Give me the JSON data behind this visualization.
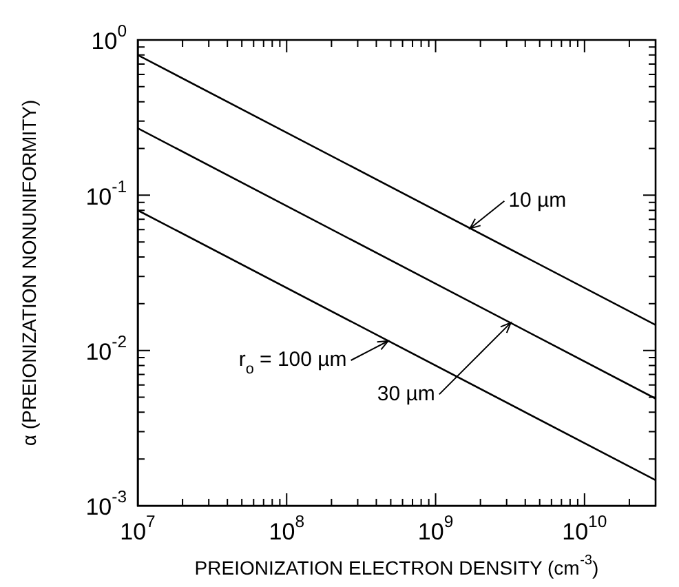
{
  "chart_data": {
    "type": "line",
    "xlabel": "PREIONIZATION ELECTRON DENSITY (cm$^{-3}$)",
    "ylabel": "α (PREIONIZATION NONUNIFORMITY)",
    "x": [
      10000000,
      30000000000
    ],
    "series": [
      {
        "color": "#000000",
        "values": [
          0.8,
          0.0146
        ]
      },
      {
        "color": "#000000",
        "values": [
          0.27,
          0.0049
        ]
      },
      {
        "color": "#000000",
        "values": [
          0.08,
          0.00146
        ]
      }
    ],
    "log": "xy",
    "grid": false,
    "legend": false,
    "marker": "none",
    "line_style": "solid",
    "xlim": [
      10000000,
      30000000000
    ],
    "xticks": [
      {
        "value": 10000000,
        "label": "10$^{7}$"
      },
      {
        "value": 20000000,
        "label": null
      },
      {
        "value": 30000000,
        "label": null
      },
      {
        "value": 40000000,
        "label": null
      },
      {
        "value": 50000000,
        "label": null
      },
      {
        "value": 60000000,
        "label": null
      },
      {
        "value": 70000000,
        "label": null
      },
      {
        "value": 80000000,
        "label": null
      },
      {
        "value": 90000000,
        "label": null
      },
      {
        "value": 100000000,
        "label": "10$^{8}$"
      },
      {
        "value": 200000000,
        "label": null
      },
      {
        "value": 300000000,
        "label": null
      },
      {
        "value": 400000000,
        "label": null
      },
      {
        "value": 500000000,
        "label": null
      },
      {
        "value": 600000000,
        "label": null
      },
      {
        "value": 700000000,
        "label": null
      },
      {
        "value": 800000000,
        "label": null
      },
      {
        "value": 900000000,
        "label": null
      },
      {
        "value": 1000000000,
        "label": "10$^{9}$"
      },
      {
        "value": 2000000000,
        "label": null
      },
      {
        "value": 3000000000,
        "label": null
      },
      {
        "value": 4000000000,
        "label": null
      },
      {
        "value": 5000000000,
        "label": null
      },
      {
        "value": 6000000000,
        "label": null
      },
      {
        "value": 7000000000,
        "label": null
      },
      {
        "value": 8000000000,
        "label": null
      },
      {
        "value": 9000000000,
        "label": null
      },
      {
        "value": 10000000000,
        "label": "10$^{10}$"
      },
      {
        "value": 20000000000,
        "label": null
      }
    ],
    "ylim": [
      0.001,
      1
    ],
    "yticks": [
      {
        "value": 0.001,
        "label": "10$^{-3}$"
      },
      {
        "value": 0.002,
        "label": null
      },
      {
        "value": 0.003,
        "label": null
      },
      {
        "value": 0.004,
        "label": null
      },
      {
        "value": 0.005,
        "label": null
      },
      {
        "value": 0.006,
        "label": null
      },
      {
        "value": 0.007,
        "label": null
      },
      {
        "value": 0.008,
        "label": null
      },
      {
        "value": 0.009,
        "label": null
      },
      {
        "value": 0.01,
        "label": "10$^{-2}$"
      },
      {
        "value": 0.02,
        "label": null
      },
      {
        "value": 0.03,
        "label": null
      },
      {
        "value": 0.04,
        "label": null
      },
      {
        "value": 0.05,
        "label": null
      },
      {
        "value": 0.06,
        "label": null
      },
      {
        "value": 0.07,
        "label": null
      },
      {
        "value": 0.08,
        "label": null
      },
      {
        "value": 0.09,
        "label": null
      },
      {
        "value": 0.1,
        "label": "10$^{-1}$"
      },
      {
        "value": 0.2,
        "label": null
      },
      {
        "value": 0.3,
        "label": null
      },
      {
        "value": 0.4,
        "label": null
      },
      {
        "value": 0.5,
        "label": null
      },
      {
        "value": 0.6,
        "label": null
      },
      {
        "value": 0.7,
        "label": null
      },
      {
        "value": 0.8,
        "label": null
      },
      {
        "value": 0.9,
        "label": null
      },
      {
        "value": 1,
        "label": "10$^{0}$"
      }
    ],
    "annotations": [
      {
        "text": "10 µm",
        "x": 1700000000,
        "y": 0.061
      },
      {
        "text": "r$_{o}$ = 100 µm",
        "x": 480000000,
        "y": 0.0115
      },
      {
        "text": "30 µm",
        "x": 3200000000,
        "y": 0.0151
      }
    ]
  }
}
